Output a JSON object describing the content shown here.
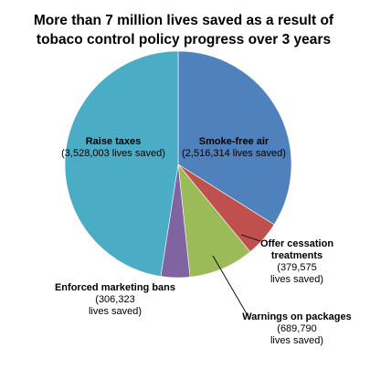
{
  "chart_data": {
    "type": "pie",
    "title": [
      "More than 7 million lives saved as a result of",
      "tobaco control policy progress over 3 years"
    ],
    "start_angle_deg": 0,
    "direction": "clockwise",
    "slices": [
      {
        "name": "Smoke-free air",
        "value": 2516314,
        "color": "#4f81bd",
        "label_lines": [
          "Smoke-free air",
          "(2,516,314 lives saved)"
        ]
      },
      {
        "name": "Offer cessation treatments",
        "value": 379575,
        "color": "#c0504d",
        "label_lines": [
          "Offer cessation",
          "treatments",
          "(379,575",
          "lives saved)"
        ]
      },
      {
        "name": "Warnings on packages",
        "value": 689790,
        "color": "#9bbb59",
        "label_lines": [
          "Warnings on packages",
          "(689,790",
          "lives saved)"
        ]
      },
      {
        "name": "Enforced marketing bans",
        "value": 306323,
        "color": "#8064a2",
        "label_lines": [
          "Enforced marketing bans",
          "(306,323",
          "lives saved)"
        ]
      },
      {
        "name": "Raise taxes",
        "value": 3528003,
        "color": "#4bacc6",
        "label_lines": [
          "Raise taxes",
          "(3,528,003 lives saved)"
        ]
      }
    ]
  }
}
